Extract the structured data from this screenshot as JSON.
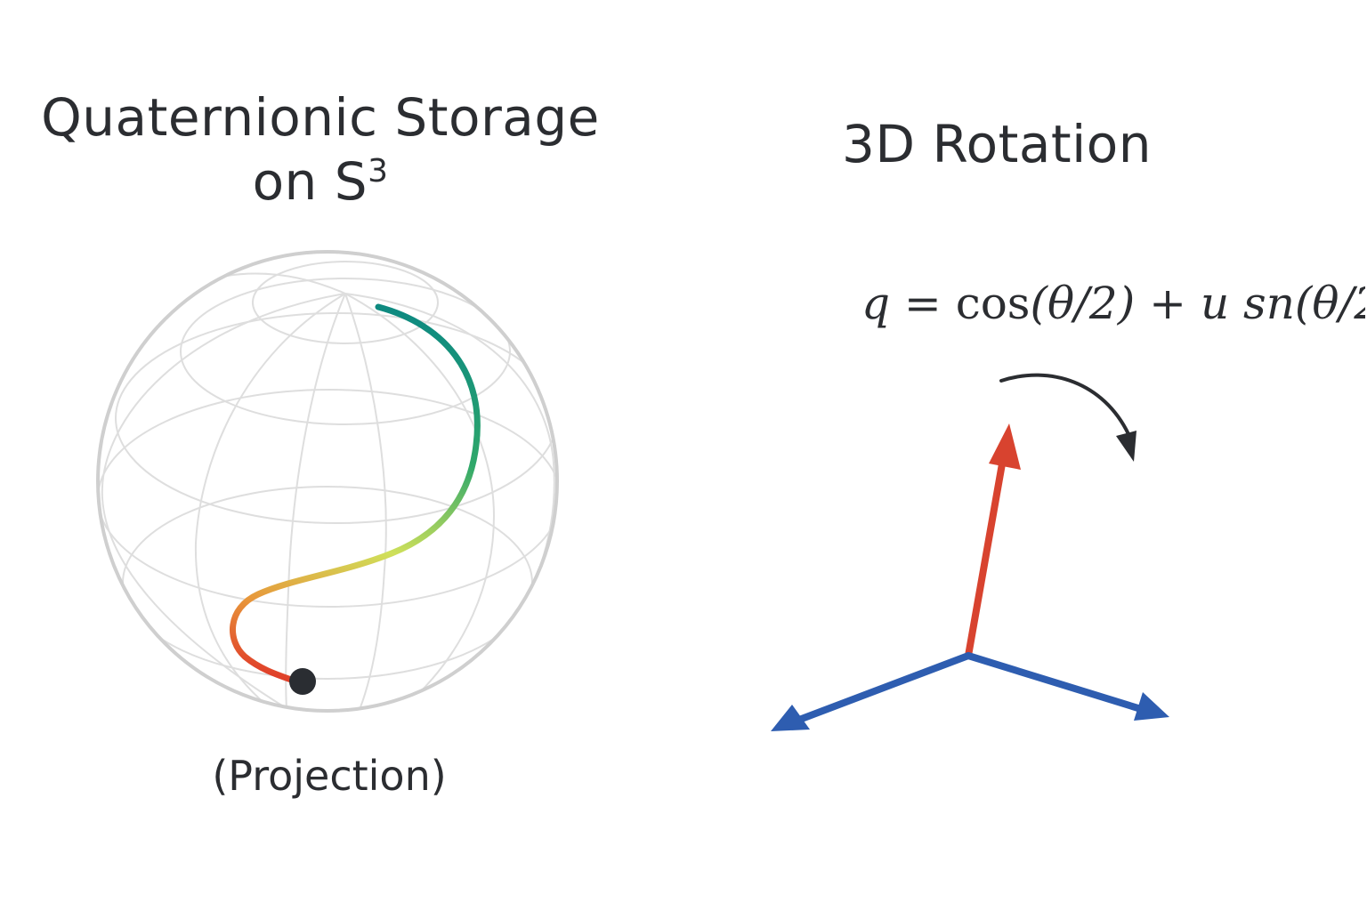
{
  "left_panel": {
    "title_line1": "Quaternionic Storage",
    "title_line2_main": "on S",
    "title_line2_sup": "3",
    "caption": "(Projection)"
  },
  "right_panel": {
    "title": "3D Rotation",
    "formula": {
      "lhs": "q",
      "eq": " = ",
      "cos": "cos",
      "arg1": "(θ/2)",
      "plus": " + ",
      "u": "u",
      "sn": " sn",
      "arg2": "(θ/2"
    }
  },
  "colors": {
    "sphere_outline": "#cfcfcf",
    "grid": "#dedede",
    "path_start": "#0e8a80",
    "path_mid": "#cfe05a",
    "path_end": "#e0402a",
    "point": "#2a2d32",
    "axis_up": "#d8432f",
    "axis_sides": "#2e5db0",
    "rotation_arrow": "#2b2d31"
  },
  "icons": {
    "rotation": "curved-arrow-icon",
    "point": "point-dot-icon"
  }
}
